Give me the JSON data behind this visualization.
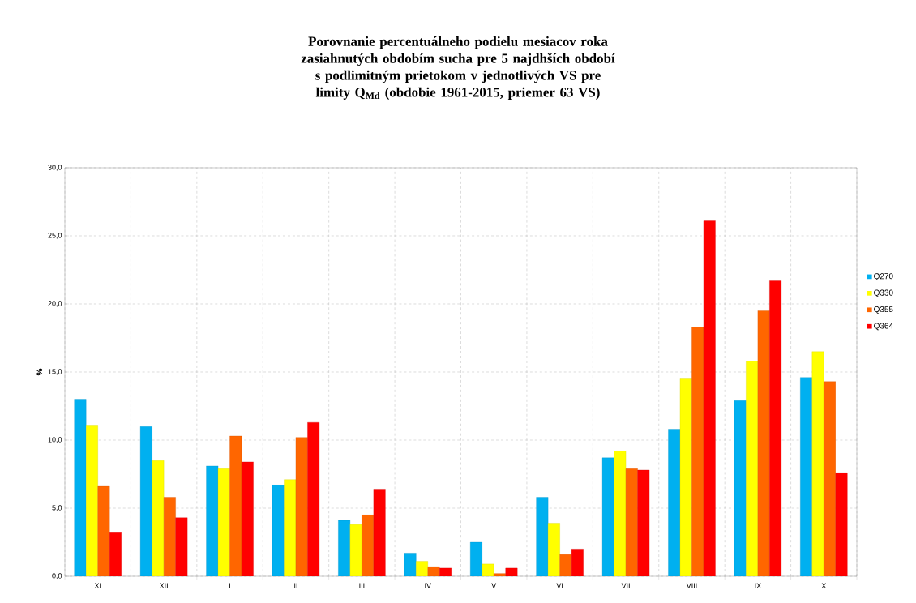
{
  "chart_data": {
    "type": "bar",
    "title": "Porovnanie percentuálneho podielu mesiacov roka zasiahnutých  obdobím sucha pre 5 najdhších období s podlimitným prietokom v  jednotlivých VS pre limity Q$_{Md}$ (obdobie 1961-2015, priemer 63 VS)",
    "ylabel": "%",
    "categories": [
      "XI",
      "XII",
      "I",
      "II",
      "III",
      "IV",
      "V",
      "VI",
      "VII",
      "VIII",
      "IX",
      "X"
    ],
    "series": [
      {
        "name": "Q270",
        "color": "#00b0f0",
        "values": [
          13.0,
          11.0,
          8.1,
          6.7,
          4.1,
          1.7,
          2.5,
          5.8,
          8.7,
          10.8,
          12.9,
          14.6
        ]
      },
      {
        "name": "Q330",
        "color": "#ffff00",
        "values": [
          11.1,
          8.5,
          7.9,
          7.1,
          3.8,
          1.1,
          0.9,
          3.9,
          9.2,
          14.5,
          15.8,
          16.5
        ]
      },
      {
        "name": "Q355",
        "color": "#ff6600",
        "values": [
          6.6,
          5.8,
          10.3,
          10.2,
          4.5,
          0.7,
          0.2,
          1.6,
          7.9,
          18.3,
          19.5,
          14.3
        ]
      },
      {
        "name": "Q364",
        "color": "#ff0000",
        "values": [
          3.2,
          4.3,
          8.4,
          11.3,
          6.4,
          0.6,
          0.6,
          2.0,
          7.8,
          26.1,
          21.7,
          7.6
        ]
      }
    ],
    "ylim": [
      0,
      30
    ],
    "yticks": [
      {
        "value": 0,
        "label": "0,0"
      },
      {
        "value": 5,
        "label": "5,0"
      },
      {
        "value": 10,
        "label": "10,0"
      },
      {
        "value": 15,
        "label": "15,0"
      },
      {
        "value": 20,
        "label": "20,0"
      },
      {
        "value": 25,
        "label": "25,0"
      },
      {
        "value": 30,
        "label": "30,0"
      }
    ],
    "grid": true,
    "legend": "right"
  }
}
